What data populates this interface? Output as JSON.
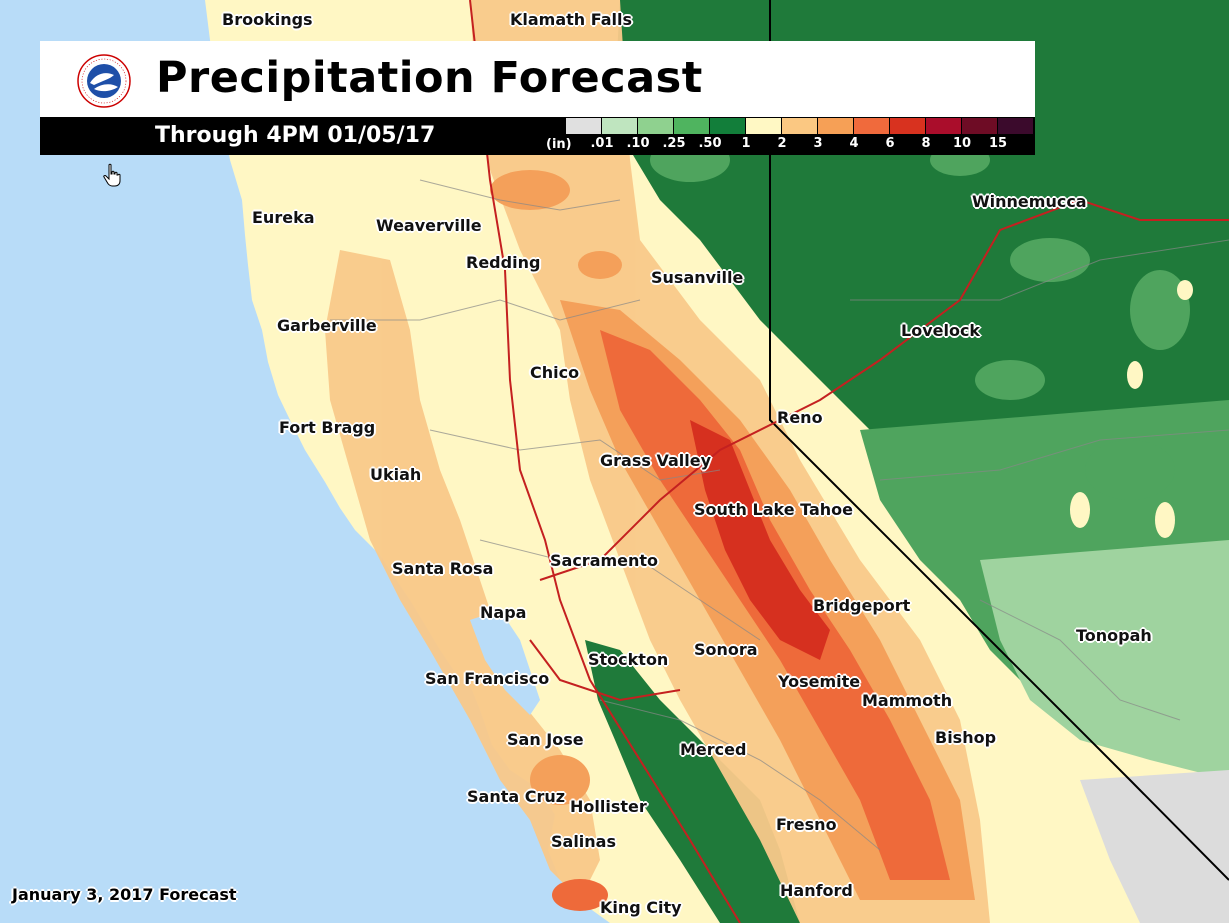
{
  "header": {
    "title": "Precipitation Forecast",
    "subtitle": "Through 4PM 01/05/17",
    "logo_text": "NATIONAL WEATHER SERVICE"
  },
  "legend": {
    "unit": "(in)",
    "ticks": [
      ".01",
      ".10",
      ".25",
      ".50",
      "1",
      "2",
      "3",
      "4",
      "6",
      "8",
      "10",
      "15"
    ],
    "colors": [
      "#e0e0e0",
      "#bfe5bf",
      "#8fd18f",
      "#4fb45f",
      "#127e3a",
      "#fff8c4",
      "#fbc882",
      "#f6a056",
      "#f06a3c",
      "#d8321f",
      "#aa0d2b",
      "#6e0c25",
      "#3b0a2c"
    ]
  },
  "map_colors": {
    "ocean": "#b8dcf8",
    "base": "#fff7c4",
    "light_orange": "#f9c98a",
    "orange": "#f4a05a",
    "red_orange": "#ee6a3a",
    "red": "#d6301f",
    "dark_green": "#1f7a3a",
    "mid_green": "#4fa45e",
    "light_green": "#9fd39f",
    "gray": "#dcdcdc",
    "border": "#000000",
    "county": "#999999",
    "highway": "#c42020"
  },
  "cities": {
    "brookings": "Brookings",
    "klamath_falls": "Klamath Falls",
    "eureka": "Eureka",
    "weaverville": "Weaverville",
    "redding": "Redding",
    "susanville": "Susanville",
    "winnemucca": "Winnemucca",
    "garberville": "Garberville",
    "lovelock": "Lovelock",
    "chico": "Chico",
    "reno": "Reno",
    "fort_bragg": "Fort Bragg",
    "grass_valley": "Grass Valley",
    "ukiah": "Ukiah",
    "south_lake_tahoe": "South Lake Tahoe",
    "sacramento": "Sacramento",
    "santa_rosa": "Santa Rosa",
    "bridgeport": "Bridgeport",
    "napa": "Napa",
    "tonopah": "Tonopah",
    "sonora": "Sonora",
    "stockton": "Stockton",
    "san_francisco": "San Francisco",
    "yosemite": "Yosemite",
    "mammoth": "Mammoth",
    "san_jose": "San Jose",
    "bishop": "Bishop",
    "merced": "Merced",
    "santa_cruz": "Santa Cruz",
    "hollister": "Hollister",
    "fresno": "Fresno",
    "salinas": "Salinas",
    "hanford": "Hanford",
    "king_city": "King City"
  },
  "footer": {
    "forecast_date": "January 3, 2017 Forecast"
  }
}
